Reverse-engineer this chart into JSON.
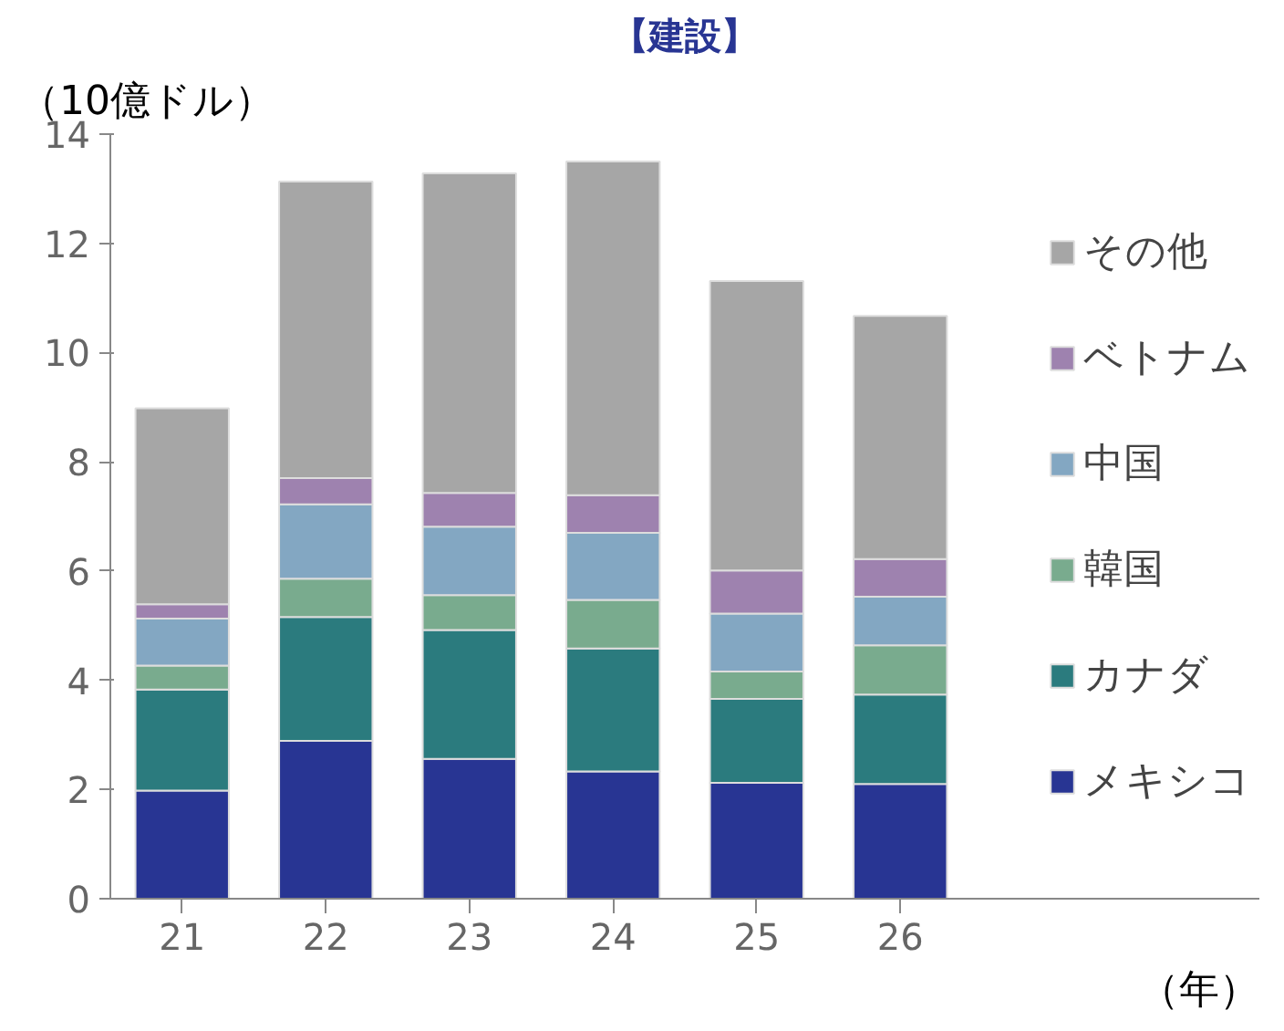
{
  "chart_data": {
    "type": "bar",
    "stacked": true,
    "title": "【建設】",
    "ylabel": "（10億ドル）",
    "xlabel": "（年）",
    "categories": [
      "21",
      "22",
      "23",
      "24",
      "25",
      "26"
    ],
    "series": [
      {
        "name": "メキシコ",
        "color": "#283593",
        "values": [
          1.98,
          2.89,
          2.56,
          2.33,
          2.12,
          2.1
        ]
      },
      {
        "name": "カナダ",
        "color": "#2b7b7e",
        "values": [
          1.85,
          2.27,
          2.36,
          2.25,
          1.54,
          1.64
        ]
      },
      {
        "name": "韓国",
        "color": "#79ab8e",
        "values": [
          0.44,
          0.7,
          0.64,
          0.89,
          0.5,
          0.9
        ]
      },
      {
        "name": "中国",
        "color": "#83a7c2",
        "values": [
          0.86,
          1.36,
          1.25,
          1.23,
          1.06,
          0.89
        ]
      },
      {
        "name": "ベトナム",
        "color": "#9e82af",
        "values": [
          0.26,
          0.48,
          0.62,
          0.69,
          0.79,
          0.69
        ]
      },
      {
        "name": "その他",
        "color": "#a6a6a6",
        "values": [
          3.59,
          5.43,
          5.85,
          6.11,
          5.3,
          4.45
        ]
      }
    ],
    "ylim": [
      0,
      14
    ],
    "yticks": [
      0,
      2,
      4,
      6,
      8,
      10,
      12,
      14
    ],
    "grid": false,
    "legend": "right"
  }
}
